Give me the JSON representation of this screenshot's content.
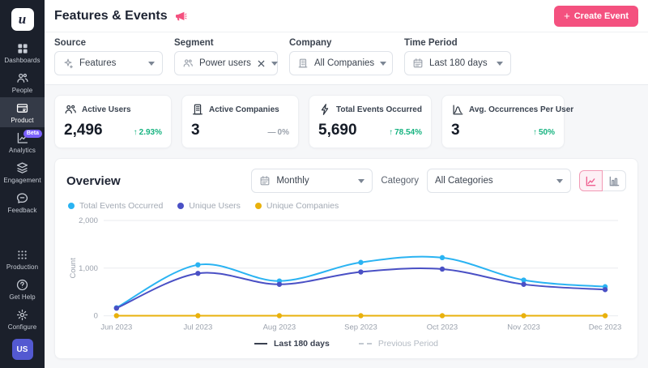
{
  "sidebar": {
    "logo_letter": "u",
    "items": [
      {
        "label": "Dashboards"
      },
      {
        "label": "People"
      },
      {
        "label": "Product"
      },
      {
        "label": "Analytics",
        "badge": "Beta"
      },
      {
        "label": "Engagement"
      },
      {
        "label": "Feedback"
      }
    ],
    "bottom_items": [
      {
        "label": "Production"
      },
      {
        "label": "Get Help"
      },
      {
        "label": "Configure"
      }
    ],
    "avatar_initials": "US"
  },
  "header": {
    "title": "Features & Events",
    "create_button_plus": "+",
    "create_button_label": "Create Event"
  },
  "filters": [
    {
      "label": "Source",
      "value": "Features"
    },
    {
      "label": "Segment",
      "value": "Power users"
    },
    {
      "label": "Company",
      "value": "All Companies"
    },
    {
      "label": "Time Period",
      "value": "Last 180 days"
    }
  ],
  "stats": [
    {
      "title": "Active Users",
      "value": "2,496",
      "delta_arrow": "↑",
      "delta": "2.93%",
      "direction": "up"
    },
    {
      "title": "Active Companies",
      "value": "3",
      "delta_arrow": "—",
      "delta": "0%",
      "direction": "flat"
    },
    {
      "title": "Total Events Occurred",
      "value": "5,690",
      "delta_arrow": "↑",
      "delta": "78.54%",
      "direction": "up"
    },
    {
      "title": "Avg. Occurrences Per User",
      "value": "3",
      "delta_arrow": "↑",
      "delta": "50%",
      "direction": "up"
    }
  ],
  "overview": {
    "title": "Overview",
    "interval_value": "Monthly",
    "category_label": "Category",
    "category_value": "All Categories",
    "bottom_legend": [
      {
        "label": "Last 180 days",
        "style": "solid"
      },
      {
        "label": "Previous Period",
        "style": "dashed"
      }
    ]
  },
  "chart_data": {
    "type": "line",
    "x": [
      "Jun 2023",
      "Jul 2023",
      "Aug 2023",
      "Sep 2023",
      "Oct 2023",
      "Nov 2023",
      "Dec 2023"
    ],
    "series": [
      {
        "name": "Total Events Occurred",
        "color": "#2ab3f2",
        "values": [
          170,
          1070,
          730,
          1120,
          1220,
          750,
          610
        ]
      },
      {
        "name": "Unique Users",
        "color": "#4a50c5",
        "values": [
          160,
          890,
          660,
          920,
          980,
          660,
          550
        ]
      },
      {
        "name": "Unique Companies",
        "color": "#e9b10c",
        "values": [
          3,
          3,
          3,
          3,
          3,
          3,
          3
        ]
      }
    ],
    "ylabel": "Count",
    "ylim": [
      0,
      2000
    ],
    "yticks": [
      0,
      1000,
      2000
    ],
    "grid": true,
    "legend_position": "top-left"
  },
  "colors": {
    "accent_pink": "#f4517f",
    "sidebar_bg": "#1b202b",
    "positive_green": "#17b380",
    "beta_badge": "#7b61ff",
    "avatar_bg": "#5359d1"
  }
}
